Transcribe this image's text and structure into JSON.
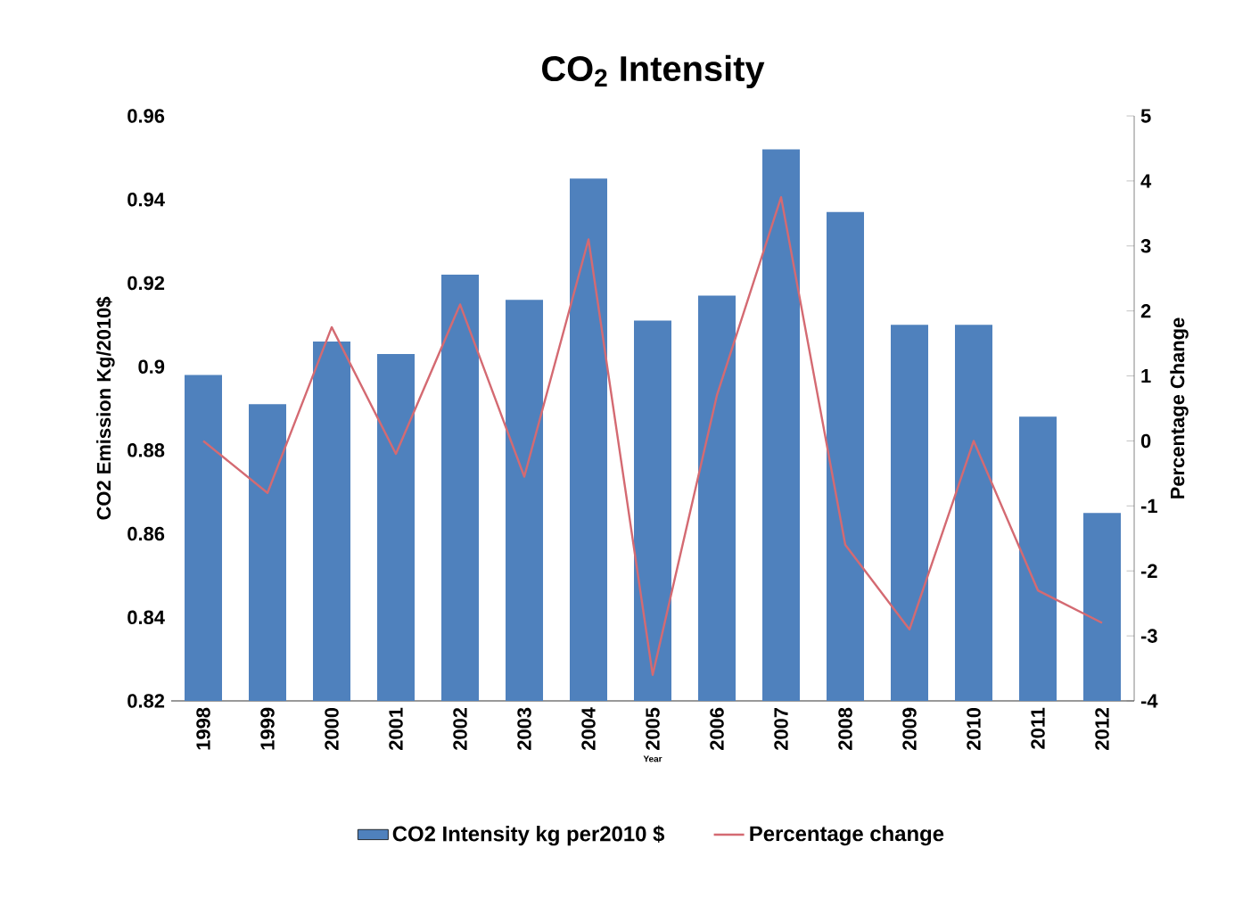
{
  "chart_data": {
    "type": "bar",
    "title": "CO$_{2}$ Intensity",
    "xlabel": "Year",
    "ylabel": "CO2 Emission  Kg/2010$",
    "y2label": "Percentage Change",
    "categories": [
      "1998",
      "1999",
      "2000",
      "2001",
      "2002",
      "2003",
      "2004",
      "2005",
      "2006",
      "2007",
      "2008",
      "2009",
      "2010",
      "2011",
      "2012"
    ],
    "series": [
      {
        "name": "CO2 Intensity kg per2010 $",
        "color": "#4f81bd",
        "values": [
          0.898,
          0.891,
          0.906,
          0.903,
          0.922,
          0.916,
          0.945,
          0.911,
          0.917,
          0.952,
          0.937,
          0.91,
          0.91,
          0.888,
          0.865
        ]
      },
      {
        "name": "Percentage change",
        "type": "line",
        "axis": "y2",
        "color": "#d46a72",
        "values": [
          0.0,
          -0.8,
          1.75,
          -0.2,
          2.1,
          -0.55,
          3.1,
          -3.6,
          0.7,
          3.75,
          -1.6,
          -2.9,
          0.0,
          -2.3,
          -2.8
        ]
      }
    ],
    "ylim": [
      0.82,
      0.96
    ],
    "yticks": [
      0.82,
      0.84,
      0.86,
      0.88,
      0.9,
      0.92,
      0.94,
      0.96
    ],
    "y2lim": [
      -4,
      5
    ],
    "y2ticks": [
      -4,
      -3,
      -2,
      -1,
      0,
      1,
      2,
      3,
      4,
      5
    ],
    "legend": "bottom"
  }
}
